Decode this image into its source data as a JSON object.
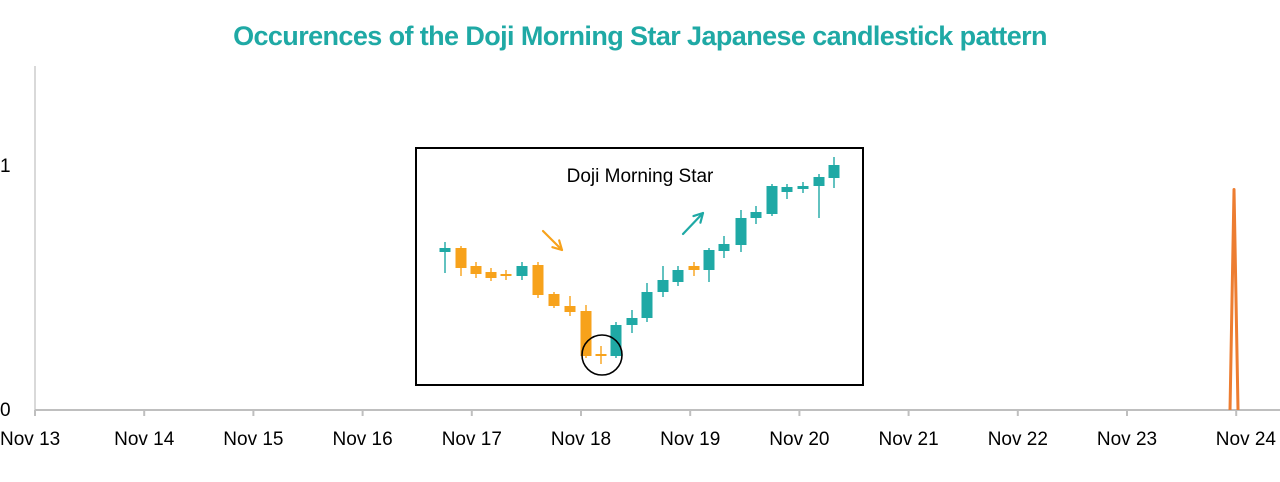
{
  "chart_data": {
    "type": "line",
    "title": "Occurences of the Doji Morning Star Japanese candlestick pattern",
    "xlabel": "",
    "ylabel": "",
    "x": [
      "Nov 13",
      "Nov 14",
      "Nov 15",
      "Nov 16",
      "Nov 17",
      "Nov 18",
      "Nov 19",
      "Nov 20",
      "Nov 21",
      "Nov 22",
      "Nov 23",
      "Nov 24"
    ],
    "y_ticks": [
      "0",
      "1"
    ],
    "ylim": [
      0,
      1.4
    ],
    "grid": false,
    "series": [
      {
        "color": "#ed7d31",
        "occurrences": [
          {
            "x": "Nov 24",
            "offset_days": -0.02,
            "value": 0.9
          }
        ]
      }
    ],
    "inset": {
      "label": "Doji Morning Star",
      "colors": {
        "bearish": "#f7a21b",
        "bullish": "#1fa9a5"
      }
    }
  }
}
